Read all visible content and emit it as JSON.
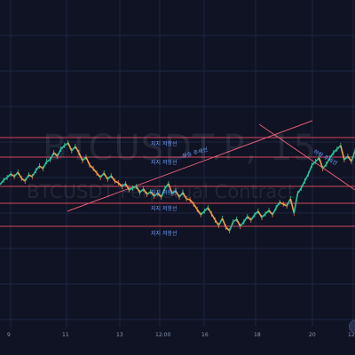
{
  "chart_data": {
    "type": "line",
    "title": "BTCUSDT.P, 15",
    "subtitle": "BTCUSDT Perpetual Contract",
    "xlabel": "",
    "ylabel": "",
    "x_ticks": [
      "9",
      "11",
      "13",
      "12:00",
      "16",
      "18",
      "20",
      "12"
    ],
    "horizontal_levels": [
      {
        "label": "지지 저항선"
      },
      {
        "label": "지지 저항선"
      },
      {
        "label": "지지 저항선"
      },
      {
        "label": "지지 저항선"
      },
      {
        "label": "지지 저항선"
      }
    ],
    "trendlines": [
      {
        "label": "상승 추세선"
      },
      {
        "label": "하락 추세선"
      }
    ],
    "series": [
      {
        "values": [
          192,
          197,
          200,
          204,
          201,
          206,
          199,
          196,
          203,
          201,
          208,
          213,
          210,
          218,
          220,
          228,
          224,
          232,
          236,
          239,
          230,
          235,
          228,
          219,
          223,
          214,
          210,
          205,
          200,
          205,
          198,
          202,
          196,
          194,
          190,
          193,
          186,
          188,
          190,
          183,
          187,
          181,
          184,
          179,
          182,
          178,
          188,
          193,
          182,
          185,
          178,
          183,
          176,
          175,
          170,
          164,
          158,
          162,
          166,
          159,
          152,
          146,
          154,
          144,
          140,
          150,
          153,
          145,
          150,
          156,
          152,
          158,
          162,
          155,
          159,
          163,
          158,
          166,
          172,
          170,
          168,
          176,
          160,
          182,
          188,
          196,
          204,
          214,
          218,
          222,
          210,
          215,
          222,
          228,
          232,
          236,
          220,
          224,
          218,
          230
        ]
      }
    ],
    "ylim": [
      0,
      400
    ],
    "grid": true
  }
}
